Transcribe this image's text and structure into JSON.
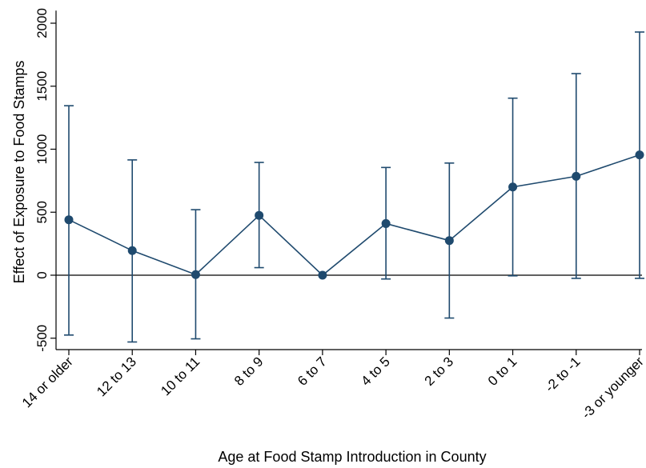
{
  "chart_data": {
    "type": "line",
    "title": "",
    "xlabel": "Age at Food Stamp Introduction in County",
    "ylabel": "Effect of Exposure to Food Stamps",
    "categories": [
      "14 or older",
      "12 to 13",
      "10 to 11",
      "8 to 9",
      "6 to 7",
      "4 to 5",
      "2 to 3",
      "0 to 1",
      "-2 to -1",
      "-3 or younger"
    ],
    "ylim": [
      -550,
      2100
    ],
    "yticks": [
      -500,
      0,
      500,
      1000,
      1500,
      2000
    ],
    "ytick_labels": [
      "-500",
      "0",
      "500",
      "1000",
      "1500",
      "2000"
    ],
    "reference_line": 0,
    "grid": false,
    "legend": "none",
    "series": [
      {
        "values": [
          440,
          195,
          5,
          475,
          0,
          410,
          275,
          700,
          785,
          955
        ],
        "lower": [
          -475,
          -530,
          -505,
          60,
          0,
          -30,
          -340,
          -5,
          -25,
          -25
        ],
        "upper": [
          1345,
          915,
          520,
          895,
          0,
          855,
          890,
          1405,
          1600,
          1930
        ],
        "color": "#1f4a6e"
      }
    ]
  }
}
